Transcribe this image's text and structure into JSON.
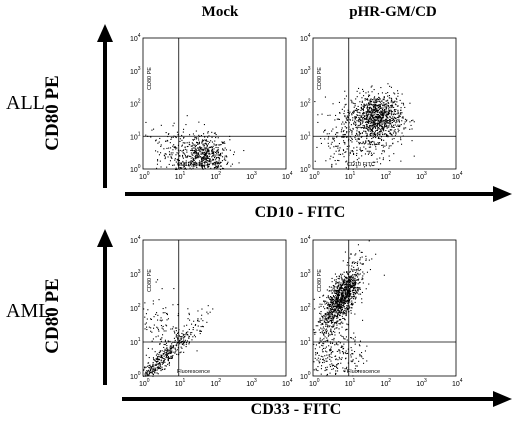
{
  "columns": {
    "mock": "Mock",
    "treated": "pHR-GM/CD"
  },
  "rows": {
    "all": {
      "label": "ALL",
      "y_marker": "CD80 PE",
      "x_marker": "CD10 - FITC",
      "plot_y_axis": "CD80 PE",
      "plot_x_axis": "CD10 FITC"
    },
    "aml": {
      "label": "AML",
      "y_marker": "CD80 PE",
      "x_marker": "CD33 - FITC",
      "plot_y_axis": "CD80 PE",
      "plot_x_axis": "Fluorescence"
    }
  },
  "axis_ticks": {
    "base": "10",
    "exponents": [
      "0",
      "1",
      "2",
      "3",
      "4"
    ]
  },
  "chart_data": [
    {
      "type": "scatter",
      "panel": "ALL-Mock",
      "xlabel": "CD10 FITC",
      "ylabel": "CD80 PE",
      "xscale": "log",
      "yscale": "log",
      "xlim": [
        1,
        10000
      ],
      "ylim": [
        1,
        10000
      ],
      "gate": [
        10,
        10
      ],
      "populations": [
        {
          "center": [
            50,
            2
          ],
          "spread_decades": 0.35,
          "n": 600
        },
        {
          "center": [
            8,
            3
          ],
          "spread_decades": 0.5,
          "n": 200
        }
      ]
    },
    {
      "type": "scatter",
      "panel": "ALL-pHR-GM/CD",
      "xlabel": "CD10 FITC",
      "ylabel": "CD80 PE",
      "xscale": "log",
      "yscale": "log",
      "xlim": [
        1,
        10000
      ],
      "ylim": [
        1,
        10000
      ],
      "gate": [
        10,
        10
      ],
      "populations": [
        {
          "center": [
            60,
            40
          ],
          "spread_decades": 0.35,
          "n": 900
        },
        {
          "center": [
            15,
            8
          ],
          "spread_decades": 0.6,
          "n": 350
        }
      ]
    },
    {
      "type": "scatter",
      "panel": "AML-Mock",
      "xlabel": "Fluorescence",
      "ylabel": "CD80 PE",
      "xscale": "log",
      "yscale": "log",
      "xlim": [
        1,
        10000
      ],
      "ylim": [
        1,
        10000
      ],
      "gate": [
        10,
        10
      ],
      "populations": [
        {
          "center": [
            3,
            3
          ],
          "spread_decades": 0.35,
          "n": 500,
          "shape": "diagonal"
        },
        {
          "center": [
            2,
            30
          ],
          "spread_decades": 0.5,
          "n": 150
        }
      ]
    },
    {
      "type": "scatter",
      "panel": "AML-pHR-GM/CD",
      "xlabel": "Fluorescence",
      "ylabel": "CD80 PE",
      "xscale": "log",
      "yscale": "log",
      "xlim": [
        1,
        10000
      ],
      "ylim": [
        1,
        10000
      ],
      "gate": [
        10,
        10
      ],
      "populations": [
        {
          "center": [
            6,
            200
          ],
          "spread_decades": 0.45,
          "n": 1100,
          "shape": "elongated"
        },
        {
          "center": [
            4,
            5
          ],
          "spread_decades": 0.4,
          "n": 250
        }
      ]
    }
  ]
}
